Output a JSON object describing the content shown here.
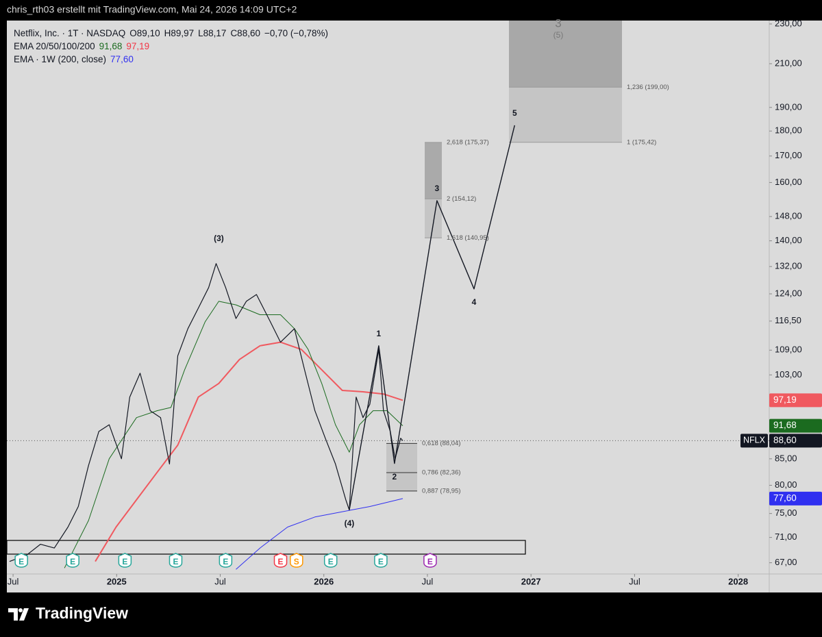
{
  "header_text": "chris_rth03 erstellt mit TradingView.com, Mai 24, 2026 14:09 UTC+2",
  "brand": "TradingView",
  "chart_data": {
    "type": "line",
    "title": "Netflix, Inc. · 1T · NASDAQ",
    "ohlc": [
      "O89,10",
      "H89,97",
      "L88,17",
      "C88,60",
      "−0,70 (−0,78%)"
    ],
    "log": true,
    "xlim": [
      2024.47,
      2028.15
    ],
    "xticks": [
      {
        "value": 2024.5,
        "label": "Jul"
      },
      2025,
      {
        "value": 2025.5,
        "label": "Jul"
      },
      2026,
      {
        "value": 2026.5,
        "label": "Jul"
      },
      2027,
      {
        "value": 2027.5,
        "label": "Jul"
      },
      2028
    ],
    "ylim": [
      65.3,
      231.8
    ],
    "yticks": [
      {
        "value": 230,
        "label": "230,00"
      },
      {
        "value": 210,
        "label": "210,00"
      },
      {
        "value": 190,
        "label": "190,00"
      },
      {
        "value": 180,
        "label": "180,00"
      },
      {
        "value": 170,
        "label": "170,00"
      },
      {
        "value": 160,
        "label": "160,00"
      },
      {
        "value": 148,
        "label": "148,00"
      },
      {
        "value": 140,
        "label": "140,00"
      },
      {
        "value": 132,
        "label": "132,00"
      },
      {
        "value": 124,
        "label": "124,00"
      },
      {
        "value": 116.5,
        "label": "116,50"
      },
      {
        "value": 109,
        "label": "109,00"
      },
      {
        "value": 103,
        "label": "103,00"
      },
      {
        "value": 85,
        "label": "85,00"
      },
      {
        "value": 80,
        "label": "80,00"
      },
      {
        "value": 75,
        "label": "75,00"
      },
      {
        "value": 71,
        "label": "71,00"
      },
      {
        "value": 67,
        "label": "67,00"
      }
    ],
    "series": [
      {
        "name": "NFLX",
        "color": "#131722",
        "last_label": "88,60",
        "x": [
          2024.483,
          2024.566,
          2024.632,
          2024.699,
          2024.765,
          2024.815,
          2024.864,
          2024.914,
          2024.964,
          2025.023,
          2025.063,
          2025.113,
          2025.162,
          2025.212,
          2025.255,
          2025.295,
          2025.344,
          2025.394,
          2025.444,
          2025.48,
          2025.526,
          2025.576,
          2025.626,
          2025.675,
          2025.742,
          2025.791,
          2025.858,
          2025.907,
          2025.957,
          2026.007,
          2026.056,
          2026.106,
          2026.123,
          2026.156,
          2026.189,
          2026.222,
          2026.265,
          2026.288,
          2026.321,
          2026.344,
          2026.371,
          2026.381
        ],
        "values": [
          67.2,
          68.2,
          69.9,
          69.3,
          72.7,
          76.2,
          83.7,
          90.5,
          91.9,
          85.0,
          97.9,
          103.4,
          94.9,
          93.4,
          84.0,
          107.6,
          114.5,
          120.0,
          125.8,
          132.9,
          125.8,
          117.2,
          121.9,
          123.8,
          116.3,
          111.0,
          114.5,
          104.2,
          94.9,
          89.1,
          84.0,
          77.4,
          75.6,
          97.9,
          93.4,
          96.3,
          109.2,
          94.9,
          90.5,
          85.0,
          89.1,
          88.6
        ]
      },
      {
        "name": "EMA 20/50/100/200",
        "color": "#1b6b1f",
        "last_label": "91,68",
        "x": [
          2024.748,
          2024.864,
          2024.964,
          2025.096,
          2025.195,
          2025.262,
          2025.328,
          2025.427,
          2025.493,
          2025.576,
          2025.692,
          2025.791,
          2025.858,
          2025.924,
          2025.99,
          2026.056,
          2026.123,
          2026.172,
          2026.238,
          2026.305,
          2026.381
        ],
        "values": [
          66.2,
          73.8,
          85.0,
          93.4,
          94.9,
          95.6,
          104.2,
          116.3,
          121.9,
          120.9,
          118.2,
          118.2,
          114.5,
          109.2,
          101.0,
          91.9,
          86.3,
          91.9,
          94.9,
          94.9,
          91.68
        ]
      },
      {
        "color": "#f0595f",
        "last_label": "97,19",
        "x": [
          2024.897,
          2024.997,
          2025.096,
          2025.195,
          2025.295,
          2025.394,
          2025.493,
          2025.593,
          2025.692,
          2025.791,
          2025.891,
          2025.99,
          2026.089,
          2026.189,
          2026.288,
          2026.381
        ],
        "values": [
          67.2,
          72.7,
          77.4,
          82.4,
          87.7,
          97.9,
          101.0,
          106.7,
          110.1,
          111.0,
          109.2,
          104.2,
          99.4,
          99.1,
          98.6,
          97.19
        ]
      },
      {
        "name": "EMA · 1W (200, close)",
        "color": "#3030f0",
        "last_label": "77,60",
        "x": [
          2025.576,
          2025.692,
          2025.825,
          2025.957,
          2026.089,
          2026.222,
          2026.381
        ],
        "values": [
          66.0,
          69.3,
          72.7,
          74.4,
          75.3,
          76.2,
          77.6
        ]
      }
    ],
    "projection": {
      "color": "#131722",
      "labels": [
        "(4)",
        "1",
        "2",
        "3",
        "4",
        "5"
      ],
      "x": [
        2026.123,
        2026.265,
        2026.341,
        2026.546,
        2026.725,
        2026.921
      ],
      "values": [
        75.6,
        110.1,
        84.1,
        153.5,
        125.4,
        182.4
      ]
    },
    "peak_label": "(3)",
    "fib_groups": [
      {
        "levels": [
          {
            "label": "0,618 (88,04)",
            "value": 88.04
          },
          {
            "label": "0,786 (82,36)",
            "value": 82.36
          },
          {
            "label": "0,887 (78,95)",
            "value": 78.95
          }
        ]
      },
      {
        "levels": [
          {
            "label": "1,618 (140,95)",
            "value": 140.95
          },
          {
            "label": "2 (154,12)",
            "value": 154.12
          },
          {
            "label": "2,618 (175,37)",
            "value": 175.37
          }
        ]
      },
      {
        "levels": [
          {
            "label": "1 (175,42)",
            "value": 175.42
          },
          {
            "label": "1,236 (199,00)",
            "value": 199.0
          }
        ],
        "labels": [
          "3",
          "(5)"
        ]
      }
    ],
    "events": [
      {
        "x": 2024.54,
        "label": "E",
        "color": "#26a69a"
      },
      {
        "x": 2024.788,
        "label": "E",
        "color": "#26a69a"
      },
      {
        "x": 2025.04,
        "label": "E",
        "color": "#26a69a"
      },
      {
        "x": 2025.285,
        "label": "E",
        "color": "#26a69a"
      },
      {
        "x": 2025.526,
        "label": "E",
        "color": "#26a69a"
      },
      {
        "x": 2025.791,
        "label": "E",
        "color": "#f23645"
      },
      {
        "x": 2025.868,
        "label": "S",
        "color": "#ff9800"
      },
      {
        "x": 2026.033,
        "label": "E",
        "color": "#26a69a"
      },
      {
        "x": 2026.275,
        "label": "E",
        "color": "#26a69a"
      },
      {
        "x": 2026.513,
        "label": "E",
        "color": "#9c27b0"
      }
    ]
  }
}
